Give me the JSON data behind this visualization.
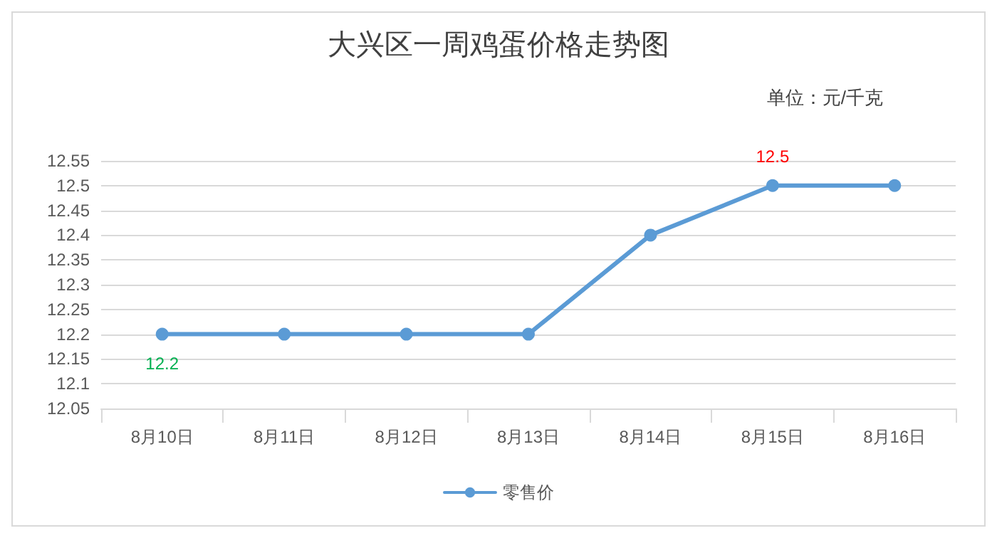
{
  "chart_data": {
    "type": "line",
    "title": "大兴区一周鸡蛋价格走势图",
    "subtitle": "单位：元/千克",
    "categories": [
      "8月10日",
      "8月11日",
      "8月12日",
      "8月13日",
      "8月14日",
      "8月15日",
      "8月16日"
    ],
    "series": [
      {
        "name": "零售价",
        "color": "#5b9bd5",
        "values": [
          12.2,
          12.2,
          12.2,
          12.2,
          12.4,
          12.5,
          12.5
        ],
        "value_labels": [
          "12.2",
          null,
          null,
          null,
          null,
          "12.5",
          null
        ]
      }
    ],
    "ylim": [
      12.05,
      12.55
    ],
    "yticks": [
      12.05,
      12.1,
      12.15,
      12.2,
      12.25,
      12.3,
      12.35,
      12.4,
      12.45,
      12.5,
      12.55
    ],
    "grid": "y",
    "legend": "bottom",
    "marker": "circle",
    "line_style": "solid"
  }
}
